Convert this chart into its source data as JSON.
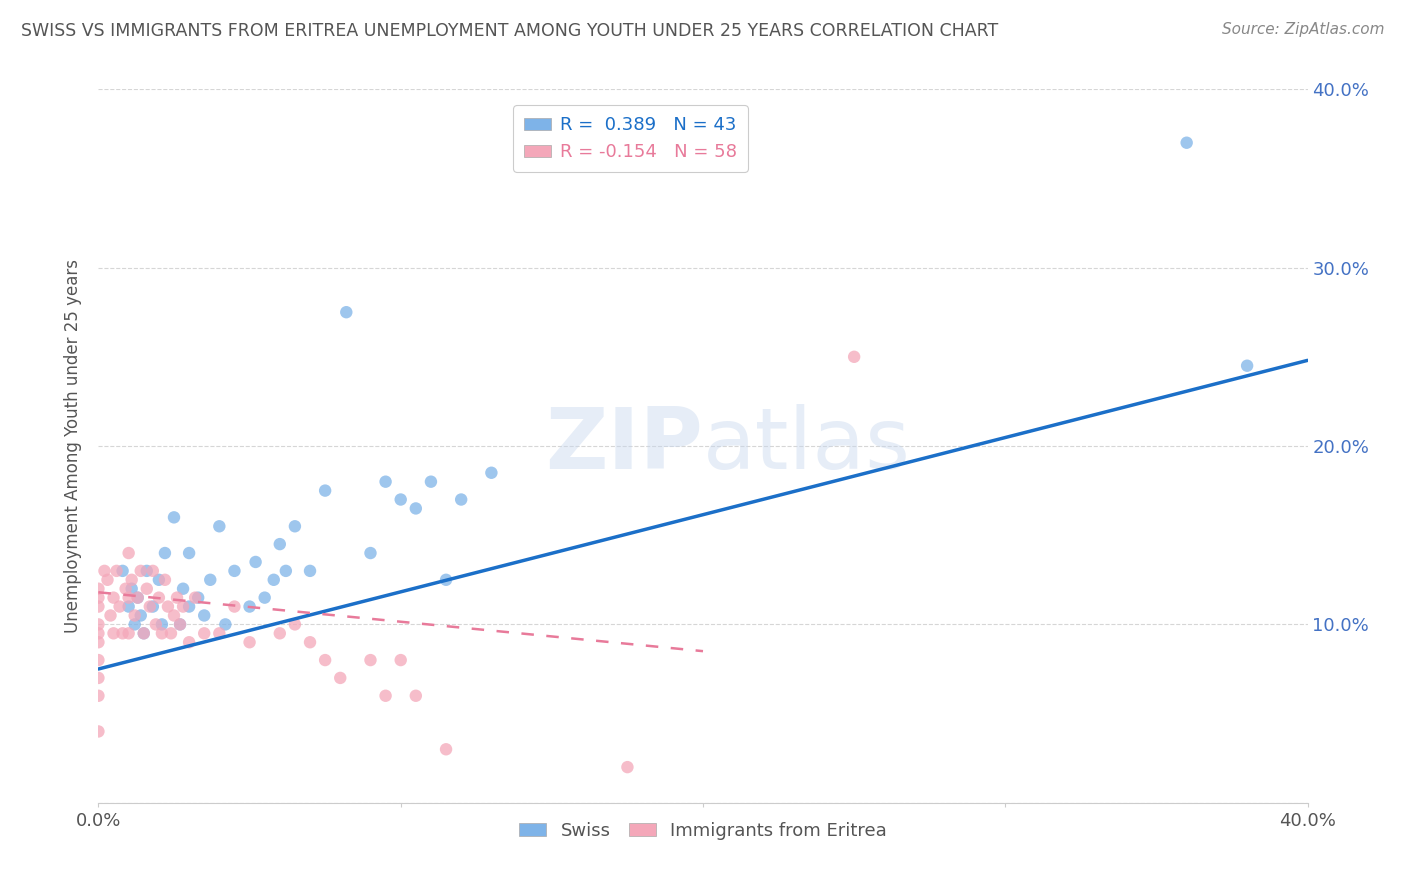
{
  "title": "SWISS VS IMMIGRANTS FROM ERITREA UNEMPLOYMENT AMONG YOUTH UNDER 25 YEARS CORRELATION CHART",
  "source": "Source: ZipAtlas.com",
  "ylabel": "Unemployment Among Youth under 25 years",
  "xlim": [
    0,
    0.4
  ],
  "ylim": [
    0,
    0.4
  ],
  "watermark": "ZIPatlas",
  "legend_r_swiss": "R =  0.389",
  "legend_n_swiss": "N = 43",
  "legend_r_eritrea": "R = -0.154",
  "legend_n_eritrea": "N = 58",
  "swiss_color": "#7EB3E8",
  "eritrea_color": "#F4A7B9",
  "swiss_line_color": "#1B6FC8",
  "eritrea_line_color": "#E87A9A",
  "background_color": "#FFFFFF",
  "grid_color": "#CCCCCC",
  "title_color": "#555555",
  "label_color": "#555555",
  "right_tick_color": "#4472C4",
  "swiss_x": [
    0.008,
    0.01,
    0.011,
    0.012,
    0.013,
    0.014,
    0.015,
    0.016,
    0.018,
    0.02,
    0.021,
    0.022,
    0.025,
    0.027,
    0.028,
    0.03,
    0.03,
    0.033,
    0.035,
    0.037,
    0.04,
    0.042,
    0.045,
    0.05,
    0.052,
    0.055,
    0.058,
    0.06,
    0.062,
    0.065,
    0.07,
    0.075,
    0.082,
    0.09,
    0.095,
    0.1,
    0.105,
    0.11,
    0.115,
    0.12,
    0.13,
    0.36,
    0.38
  ],
  "swiss_y": [
    0.13,
    0.11,
    0.12,
    0.1,
    0.115,
    0.105,
    0.095,
    0.13,
    0.11,
    0.125,
    0.1,
    0.14,
    0.16,
    0.1,
    0.12,
    0.11,
    0.14,
    0.115,
    0.105,
    0.125,
    0.155,
    0.1,
    0.13,
    0.11,
    0.135,
    0.115,
    0.125,
    0.145,
    0.13,
    0.155,
    0.13,
    0.175,
    0.275,
    0.14,
    0.18,
    0.17,
    0.165,
    0.18,
    0.125,
    0.17,
    0.185,
    0.37,
    0.245
  ],
  "eritrea_x": [
    0.0,
    0.0,
    0.0,
    0.0,
    0.0,
    0.0,
    0.0,
    0.0,
    0.0,
    0.0,
    0.002,
    0.003,
    0.004,
    0.005,
    0.005,
    0.006,
    0.007,
    0.008,
    0.009,
    0.01,
    0.01,
    0.01,
    0.011,
    0.012,
    0.013,
    0.014,
    0.015,
    0.016,
    0.017,
    0.018,
    0.019,
    0.02,
    0.021,
    0.022,
    0.023,
    0.024,
    0.025,
    0.026,
    0.027,
    0.028,
    0.03,
    0.032,
    0.035,
    0.04,
    0.045,
    0.05,
    0.06,
    0.065,
    0.07,
    0.075,
    0.08,
    0.09,
    0.095,
    0.1,
    0.105,
    0.115,
    0.175,
    0.25
  ],
  "eritrea_y": [
    0.04,
    0.06,
    0.07,
    0.08,
    0.09,
    0.095,
    0.1,
    0.11,
    0.115,
    0.12,
    0.13,
    0.125,
    0.105,
    0.115,
    0.095,
    0.13,
    0.11,
    0.095,
    0.12,
    0.115,
    0.14,
    0.095,
    0.125,
    0.105,
    0.115,
    0.13,
    0.095,
    0.12,
    0.11,
    0.13,
    0.1,
    0.115,
    0.095,
    0.125,
    0.11,
    0.095,
    0.105,
    0.115,
    0.1,
    0.11,
    0.09,
    0.115,
    0.095,
    0.095,
    0.11,
    0.09,
    0.095,
    0.1,
    0.09,
    0.08,
    0.07,
    0.08,
    0.06,
    0.08,
    0.06,
    0.03,
    0.02,
    0.25
  ],
  "swiss_line_start_y": 0.075,
  "swiss_line_end_y": 0.248,
  "eritrea_line_start_x": 0.0,
  "eritrea_line_start_y": 0.118,
  "eritrea_line_end_x": 0.2,
  "eritrea_line_end_y": 0.085
}
